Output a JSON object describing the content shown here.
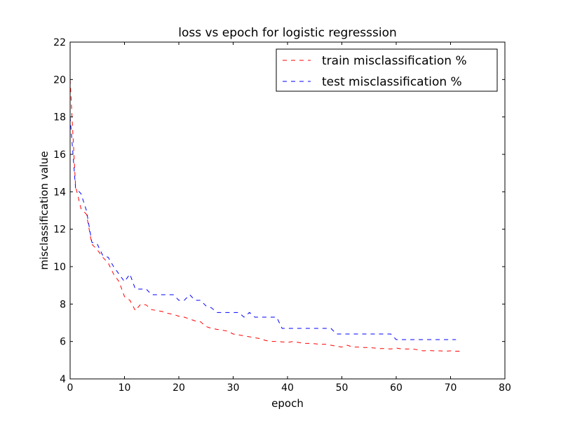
{
  "chart_data": {
    "type": "line",
    "title": "loss vs epoch for logistic regresssion",
    "xlabel": "epoch",
    "ylabel": "misclassification value",
    "xlim": [
      0,
      80
    ],
    "ylim": [
      4,
      22
    ],
    "xticks": [
      0,
      10,
      20,
      30,
      40,
      50,
      60,
      70,
      80
    ],
    "yticks": [
      4,
      6,
      8,
      10,
      12,
      14,
      16,
      18,
      20,
      22
    ],
    "grid": false,
    "legend_position": "top-right",
    "series": [
      {
        "name": "train misclassification %",
        "color": "#ff0000",
        "style": "dashed",
        "x": [
          0,
          1,
          2,
          3,
          4,
          5,
          6,
          7,
          8,
          9,
          10,
          11,
          12,
          13,
          14,
          15,
          16,
          17,
          18,
          19,
          20,
          21,
          22,
          23,
          24,
          25,
          26,
          27,
          28,
          29,
          30,
          31,
          32,
          33,
          34,
          35,
          36,
          37,
          38,
          39,
          40,
          41,
          42,
          43,
          44,
          45,
          46,
          47,
          48,
          49,
          50,
          51,
          52,
          53,
          54,
          55,
          56,
          57,
          58,
          59,
          60,
          61,
          62,
          63,
          64,
          65,
          66,
          67,
          68,
          69,
          70,
          71,
          72
        ],
        "y": [
          20.0,
          14.3,
          13.1,
          12.8,
          11.2,
          10.9,
          10.5,
          10.2,
          9.6,
          9.2,
          8.4,
          8.2,
          7.65,
          8.0,
          7.95,
          7.7,
          7.65,
          7.6,
          7.5,
          7.45,
          7.35,
          7.3,
          7.2,
          7.1,
          7.05,
          6.8,
          6.7,
          6.65,
          6.6,
          6.55,
          6.4,
          6.35,
          6.3,
          6.25,
          6.2,
          6.15,
          6.05,
          6.0,
          6.0,
          5.98,
          5.95,
          6.0,
          5.95,
          5.9,
          5.9,
          5.88,
          5.85,
          5.85,
          5.8,
          5.75,
          5.7,
          5.8,
          5.7,
          5.7,
          5.68,
          5.68,
          5.65,
          5.62,
          5.62,
          5.6,
          5.65,
          5.6,
          5.6,
          5.6,
          5.55,
          5.5,
          5.52,
          5.5,
          5.5,
          5.48,
          5.5,
          5.48,
          5.48
        ]
      },
      {
        "name": "test misclassification %",
        "color": "#0000ff",
        "style": "dashed",
        "x": [
          0,
          1,
          2,
          3,
          4,
          5,
          6,
          7,
          8,
          9,
          10,
          11,
          12,
          13,
          14,
          15,
          16,
          17,
          18,
          19,
          20,
          21,
          22,
          23,
          24,
          25,
          26,
          27,
          28,
          29,
          30,
          31,
          32,
          33,
          34,
          35,
          36,
          37,
          38,
          39,
          40,
          41,
          42,
          43,
          44,
          45,
          46,
          47,
          48,
          49,
          50,
          51,
          52,
          53,
          54,
          55,
          56,
          57,
          58,
          59,
          60,
          61,
          62,
          63,
          64,
          65,
          66,
          67,
          68,
          69,
          70,
          71
        ],
        "y": [
          18.0,
          14.2,
          13.9,
          13.0,
          11.3,
          11.2,
          10.6,
          10.5,
          10.0,
          9.6,
          9.2,
          9.6,
          8.8,
          8.8,
          8.8,
          8.5,
          8.5,
          8.5,
          8.5,
          8.5,
          8.2,
          8.2,
          8.5,
          8.2,
          8.2,
          7.9,
          7.8,
          7.55,
          7.55,
          7.55,
          7.55,
          7.55,
          7.3,
          7.55,
          7.3,
          7.3,
          7.3,
          7.3,
          7.3,
          6.7,
          6.7,
          6.7,
          6.7,
          6.7,
          6.7,
          6.7,
          6.7,
          6.7,
          6.7,
          6.4,
          6.4,
          6.4,
          6.4,
          6.4,
          6.4,
          6.4,
          6.4,
          6.4,
          6.4,
          6.4,
          6.1,
          6.1,
          6.1,
          6.1,
          6.1,
          6.1,
          6.1,
          6.1,
          6.1,
          6.1,
          6.1,
          6.1
        ]
      }
    ]
  }
}
